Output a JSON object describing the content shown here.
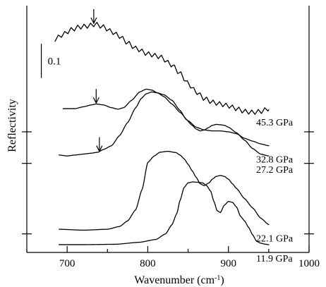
{
  "chart_data": {
    "type": "line",
    "title": "",
    "xlabel": "Wavenumber (cm",
    "xlabel_sup": "-1",
    "xlabel_close": ")",
    "ylabel": "Reflectivity",
    "xlim": [
      650,
      1000
    ],
    "ylim": [
      0,
      1.33
    ],
    "xticks": [
      700,
      800,
      900,
      1000
    ],
    "yticks_unlabeled": [
      0.1,
      0.48,
      0.65
    ],
    "grid": false,
    "legend": "none",
    "scale_bar": {
      "label": "0.1",
      "x": 668,
      "y_from": 0.94,
      "y_to": 1.125
    },
    "series": [
      {
        "name": "11.9 GPa",
        "x": [
          690,
          720,
          760,
          790,
          810,
          822,
          830,
          836,
          840,
          845,
          850,
          856,
          862,
          868,
          873,
          878,
          882,
          886,
          890,
          895,
          900,
          905,
          910,
          915,
          920,
          925,
          930,
          935,
          940,
          945,
          950
        ],
        "y": [
          0.042,
          0.042,
          0.044,
          0.055,
          0.07,
          0.1,
          0.15,
          0.21,
          0.28,
          0.35,
          0.375,
          0.38,
          0.378,
          0.375,
          0.36,
          0.33,
          0.275,
          0.225,
          0.215,
          0.255,
          0.275,
          0.27,
          0.245,
          0.195,
          0.17,
          0.135,
          0.095,
          0.06,
          0.05,
          0.045,
          0.042
        ]
      },
      {
        "name": "22.1 GPa",
        "x": [
          690,
          720,
          750,
          765,
          775,
          785,
          793,
          800,
          808,
          815,
          825,
          835,
          840,
          845,
          850,
          855,
          860,
          865,
          870,
          876,
          880,
          885,
          890,
          895,
          900,
          905,
          910,
          920,
          930,
          940,
          950
        ],
        "y": [
          0.125,
          0.12,
          0.125,
          0.14,
          0.17,
          0.23,
          0.34,
          0.485,
          0.52,
          0.54,
          0.545,
          0.538,
          0.525,
          0.505,
          0.475,
          0.44,
          0.405,
          0.37,
          0.36,
          0.375,
          0.395,
          0.41,
          0.415,
          0.41,
          0.395,
          0.37,
          0.345,
          0.29,
          0.24,
          0.185,
          0.15
        ]
      },
      {
        "name": "27.2 GPa",
        "x": [
          690,
          700,
          710,
          720,
          730,
          738,
          745,
          755,
          765,
          775,
          785,
          792,
          798,
          805,
          812,
          820,
          830,
          840,
          848,
          855,
          860,
          865,
          870,
          875,
          880,
          885,
          890,
          895,
          900,
          910,
          920,
          930,
          940,
          950
        ],
        "y": [
          0.525,
          0.52,
          0.525,
          0.53,
          0.535,
          0.54,
          0.555,
          0.575,
          0.63,
          0.7,
          0.78,
          0.83,
          0.855,
          0.865,
          0.86,
          0.85,
          0.82,
          0.765,
          0.715,
          0.685,
          0.665,
          0.655,
          0.66,
          0.672,
          0.685,
          0.69,
          0.688,
          0.685,
          0.675,
          0.645,
          0.605,
          0.56,
          0.53,
          0.52
        ]
      },
      {
        "name": "32.8 GPa",
        "x": [
          695,
          710,
          720,
          730,
          736,
          745,
          755,
          763,
          770,
          780,
          790,
          798,
          805,
          812,
          820,
          830,
          840,
          850,
          860,
          870,
          880,
          890,
          900,
          910,
          920,
          930,
          940,
          950
        ],
        "y": [
          0.775,
          0.775,
          0.785,
          0.795,
          0.8,
          0.795,
          0.78,
          0.772,
          0.78,
          0.82,
          0.865,
          0.88,
          0.875,
          0.86,
          0.84,
          0.8,
          0.755,
          0.71,
          0.675,
          0.66,
          0.655,
          0.655,
          0.65,
          0.64,
          0.615,
          0.6,
          0.585,
          0.575
        ]
      },
      {
        "name": "45.3 GPa",
        "x": [
          685,
          695,
          705,
          715,
          725,
          735,
          745,
          755,
          765,
          775,
          785,
          800,
          815,
          830,
          840,
          850,
          860,
          870,
          880,
          890,
          900,
          910,
          920,
          930,
          940,
          950
        ],
        "y": [
          1.15,
          1.175,
          1.2,
          1.215,
          1.22,
          1.23,
          1.215,
          1.19,
          1.165,
          1.13,
          1.1,
          1.07,
          1.055,
          1.01,
          0.965,
          0.91,
          0.865,
          0.83,
          0.81,
          0.8,
          0.79,
          0.775,
          0.76,
          0.755,
          0.76,
          0.775
        ],
        "wiggle_amplitude": 0.012,
        "wiggle_period": 8
      }
    ],
    "arrows": [
      {
        "series": "45.3 GPa",
        "x": 733,
        "y_tip": 1.235
      },
      {
        "series": "32.8 GPa",
        "x": 736,
        "y_tip": 0.805
      },
      {
        "series": "27.2 GPa",
        "x": 740,
        "y_tip": 0.545
      }
    ]
  }
}
